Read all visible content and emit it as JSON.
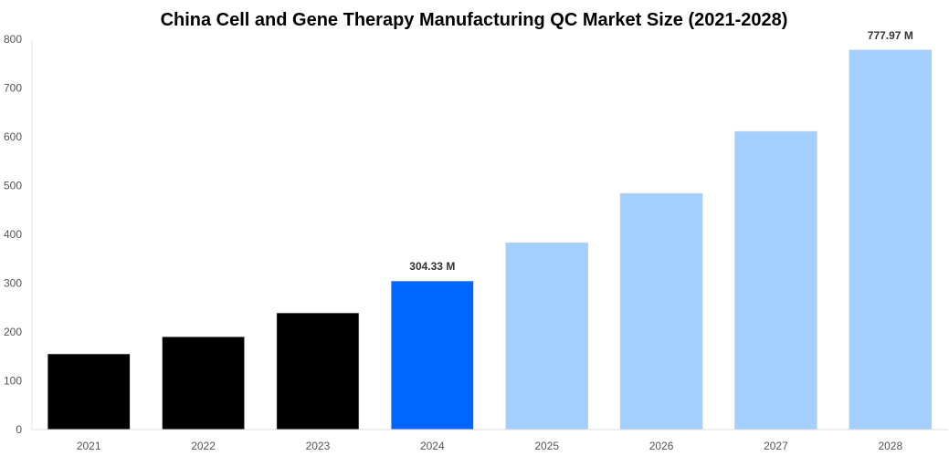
{
  "chart_data": {
    "type": "bar",
    "title": "China Cell and Gene Therapy Manufacturing QC Market Size (2021-2028)",
    "xlabel": "",
    "ylabel": "",
    "categories": [
      "2021",
      "2022",
      "2023",
      "2024",
      "2025",
      "2026",
      "2027",
      "2028"
    ],
    "values": [
      155,
      190,
      239,
      304.33,
      383,
      484,
      611,
      777.97
    ],
    "data_labels": {
      "3": "304.33 M",
      "7": "777.97 M"
    },
    "colors": [
      "#000000",
      "#000000",
      "#000000",
      "#0066ff",
      "#a3cfff",
      "#a3cfff",
      "#a3cfff",
      "#a3cfff"
    ],
    "ylim": [
      0,
      800
    ],
    "yticks": [
      0,
      100,
      200,
      300,
      400,
      500,
      600,
      700,
      800
    ],
    "grid": false,
    "legend": "none"
  }
}
